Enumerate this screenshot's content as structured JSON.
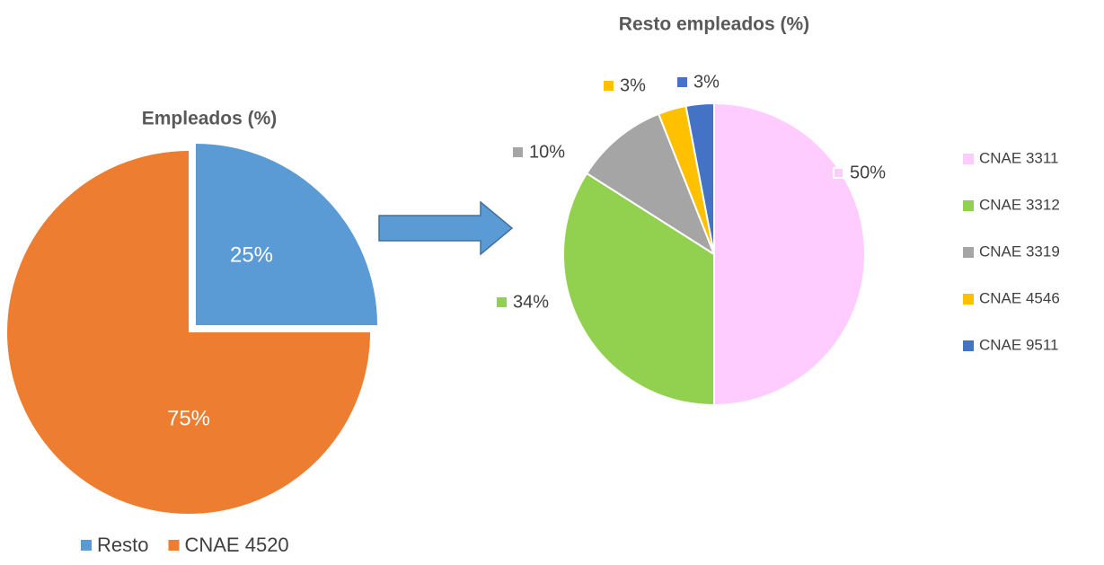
{
  "chart_data": [
    {
      "type": "pie",
      "title": "Empleados (%)",
      "categories": [
        "Resto",
        "CNAE 4520"
      ],
      "values": [
        25,
        75
      ],
      "value_labels": [
        "25%",
        "75%"
      ],
      "colors": [
        "#5b9bd5",
        "#ed7d31"
      ],
      "legend": "bottom"
    },
    {
      "type": "pie",
      "title": "Resto empleados (%)",
      "categories": [
        "CNAE 3311",
        "CNAE 3312",
        "CNAE 3319",
        "CNAE 4546",
        "CNAE 9511"
      ],
      "values": [
        50,
        34,
        10,
        3,
        3
      ],
      "value_labels": [
        "50%",
        "34%",
        "10%",
        "3%",
        "3%"
      ],
      "colors": [
        "#ffccff",
        "#92d050",
        "#a5a5a5",
        "#ffc000",
        "#4472c4"
      ],
      "legend": "right"
    }
  ]
}
